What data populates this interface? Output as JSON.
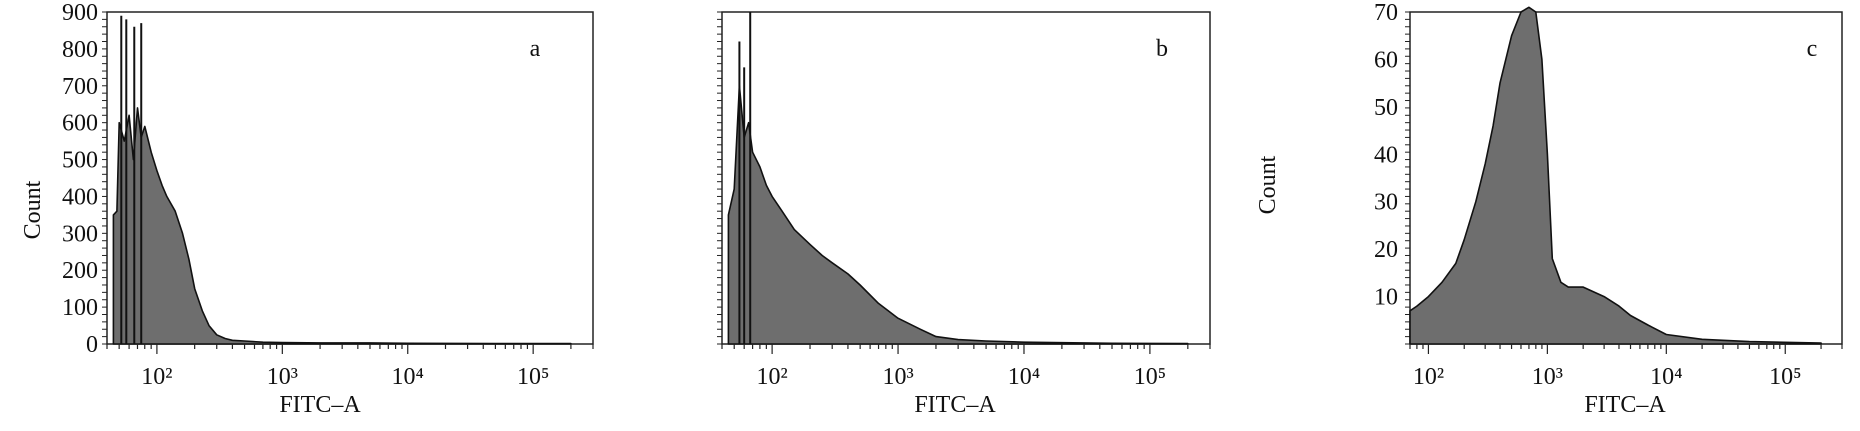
{
  "figure": {
    "panels": [
      {
        "panel_label": "a",
        "xlabel": "FITC–A",
        "ylabel": "Count"
      },
      {
        "panel_label": "b",
        "xlabel": "FITC–A",
        "ylabel": ""
      },
      {
        "panel_label": "c",
        "xlabel": "FITC–A",
        "ylabel": "Count"
      }
    ]
  },
  "chart_data": [
    {
      "type": "area",
      "panel_label": "a",
      "xlabel": "FITC–A",
      "ylabel": "Count",
      "xscale": "log",
      "xlim": [
        40,
        300000
      ],
      "ylim": [
        0,
        900
      ],
      "xticks": [
        {
          "value": 100,
          "label": "10²"
        },
        {
          "value": 1000,
          "label": "10³"
        },
        {
          "value": 10000,
          "label": "10⁴"
        },
        {
          "value": 100000,
          "label": "10⁵"
        }
      ],
      "yticks": [
        0,
        100,
        200,
        300,
        400,
        500,
        600,
        700,
        800,
        900
      ],
      "fill_color": "#6e6e6e",
      "line_color": "#111111",
      "grid": false,
      "series": [
        {
          "x": [
            45,
            48,
            50,
            55,
            60,
            65,
            70,
            75,
            80,
            90,
            100,
            110,
            120,
            140,
            160,
            180,
            200,
            230,
            260,
            300,
            350,
            400,
            500,
            700,
            1000,
            2000,
            5000,
            10000,
            50000,
            200000
          ],
          "y": [
            350,
            360,
            600,
            550,
            620,
            500,
            640,
            560,
            590,
            520,
            470,
            430,
            400,
            360,
            300,
            230,
            150,
            90,
            50,
            25,
            15,
            10,
            8,
            5,
            4,
            3,
            3,
            2,
            1,
            1
          ]
        }
      ],
      "spikes": [
        {
          "x": 52,
          "y": 890
        },
        {
          "x": 57,
          "y": 880
        },
        {
          "x": 66,
          "y": 860
        },
        {
          "x": 75,
          "y": 870
        }
      ]
    },
    {
      "type": "area",
      "panel_label": "b",
      "xlabel": "FITC–A",
      "ylabel": "",
      "xscale": "log",
      "xlim": [
        40,
        300000
      ],
      "ylim": [
        0,
        900
      ],
      "xticks": [
        {
          "value": 100,
          "label": "10²"
        },
        {
          "value": 1000,
          "label": "10³"
        },
        {
          "value": 10000,
          "label": "10⁴"
        },
        {
          "value": 100000,
          "label": "10⁵"
        }
      ],
      "fill_color": "#6e6e6e",
      "line_color": "#111111",
      "grid": false,
      "series": [
        {
          "x": [
            45,
            50,
            55,
            60,
            65,
            70,
            80,
            90,
            100,
            120,
            150,
            200,
            250,
            300,
            400,
            500,
            700,
            1000,
            1500,
            2000,
            3000,
            5000,
            10000,
            50000,
            200000
          ],
          "y": [
            350,
            420,
            700,
            560,
            600,
            520,
            480,
            430,
            400,
            360,
            310,
            270,
            240,
            220,
            190,
            160,
            110,
            70,
            40,
            20,
            12,
            8,
            5,
            2,
            1
          ]
        }
      ],
      "spikes": [
        {
          "x": 55,
          "y": 820
        },
        {
          "x": 60,
          "y": 750
        },
        {
          "x": 67,
          "y": 900
        }
      ]
    },
    {
      "type": "area",
      "panel_label": "c",
      "xlabel": "FITC–A",
      "ylabel": "Count",
      "xscale": "log",
      "xlim": [
        70,
        300000
      ],
      "ylim": [
        0,
        70
      ],
      "xticks": [
        {
          "value": 100,
          "label": "10²"
        },
        {
          "value": 1000,
          "label": "10³"
        },
        {
          "value": 10000,
          "label": "10⁴"
        },
        {
          "value": 100000,
          "label": "10⁵"
        }
      ],
      "yticks": [
        10,
        20,
        30,
        40,
        50,
        60,
        70
      ],
      "fill_color": "#6e6e6e",
      "line_color": "#111111",
      "grid": false,
      "series": [
        {
          "x": [
            70,
            80,
            100,
            130,
            170,
            200,
            250,
            300,
            350,
            400,
            500,
            600,
            700,
            800,
            900,
            1000,
            1100,
            1300,
            1500,
            2000,
            3000,
            4000,
            5000,
            7000,
            10000,
            20000,
            50000,
            200000
          ],
          "y": [
            7,
            8,
            10,
            13,
            17,
            22,
            30,
            38,
            46,
            55,
            65,
            70,
            71,
            70,
            60,
            40,
            18,
            13,
            12,
            12,
            10,
            8,
            6,
            4,
            2,
            1,
            0.5,
            0.2
          ]
        }
      ],
      "spikes": []
    }
  ]
}
